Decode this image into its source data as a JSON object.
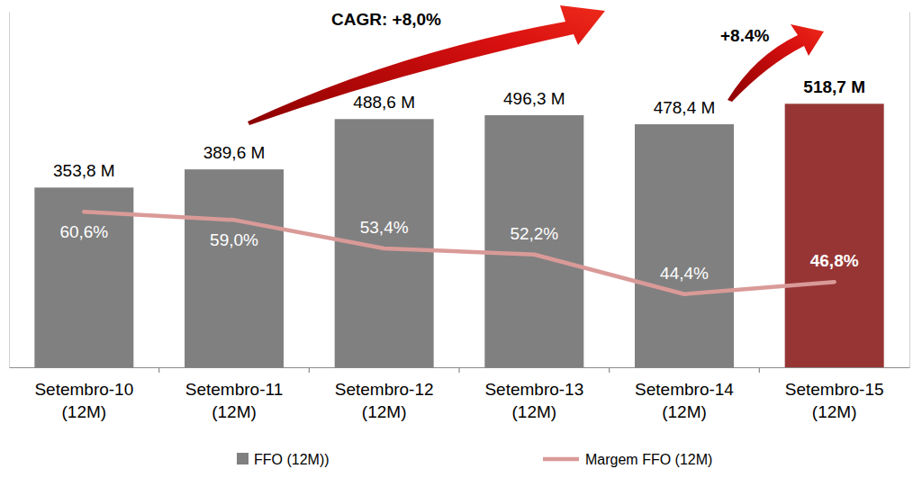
{
  "chart_data": {
    "type": "bar",
    "categories": [
      "Setembro-10 (12M)",
      "Setembro-11 (12M)",
      "Setembro-12 (12M)",
      "Setembro-13 (12M)",
      "Setembro-14 (12M)",
      "Setembro-15 (12M)"
    ],
    "series": [
      {
        "name": "FFO (12M))",
        "type": "bar",
        "colors": [
          "#808080",
          "#808080",
          "#808080",
          "#808080",
          "#808080",
          "#973535"
        ],
        "values": [
          353.8,
          389.6,
          488.6,
          496.3,
          478.4,
          518.7
        ],
        "value_labels": [
          "353,8 M",
          "389,6 M",
          "488,6 M",
          "496,3 M",
          "478,4 M",
          "518,7 M"
        ]
      },
      {
        "name": "Margem FFO (12M)",
        "type": "line",
        "axis": "y2",
        "color": "#d99a98",
        "values": [
          60.6,
          59.0,
          53.4,
          52.2,
          44.4,
          46.8
        ],
        "value_labels": [
          "60,6%",
          "59,0%",
          "53,4%",
          "52,2%",
          "44,4%",
          "46,8%"
        ]
      }
    ],
    "ylim": [
      0,
      700
    ],
    "y2lim": [
      30,
      100
    ],
    "tick_labels": "x",
    "data_labels": true,
    "grid": false,
    "legend": "bottom",
    "annotations": [
      {
        "text": "CAGR: +8,0%"
      },
      {
        "text": "+8.4%"
      }
    ]
  }
}
